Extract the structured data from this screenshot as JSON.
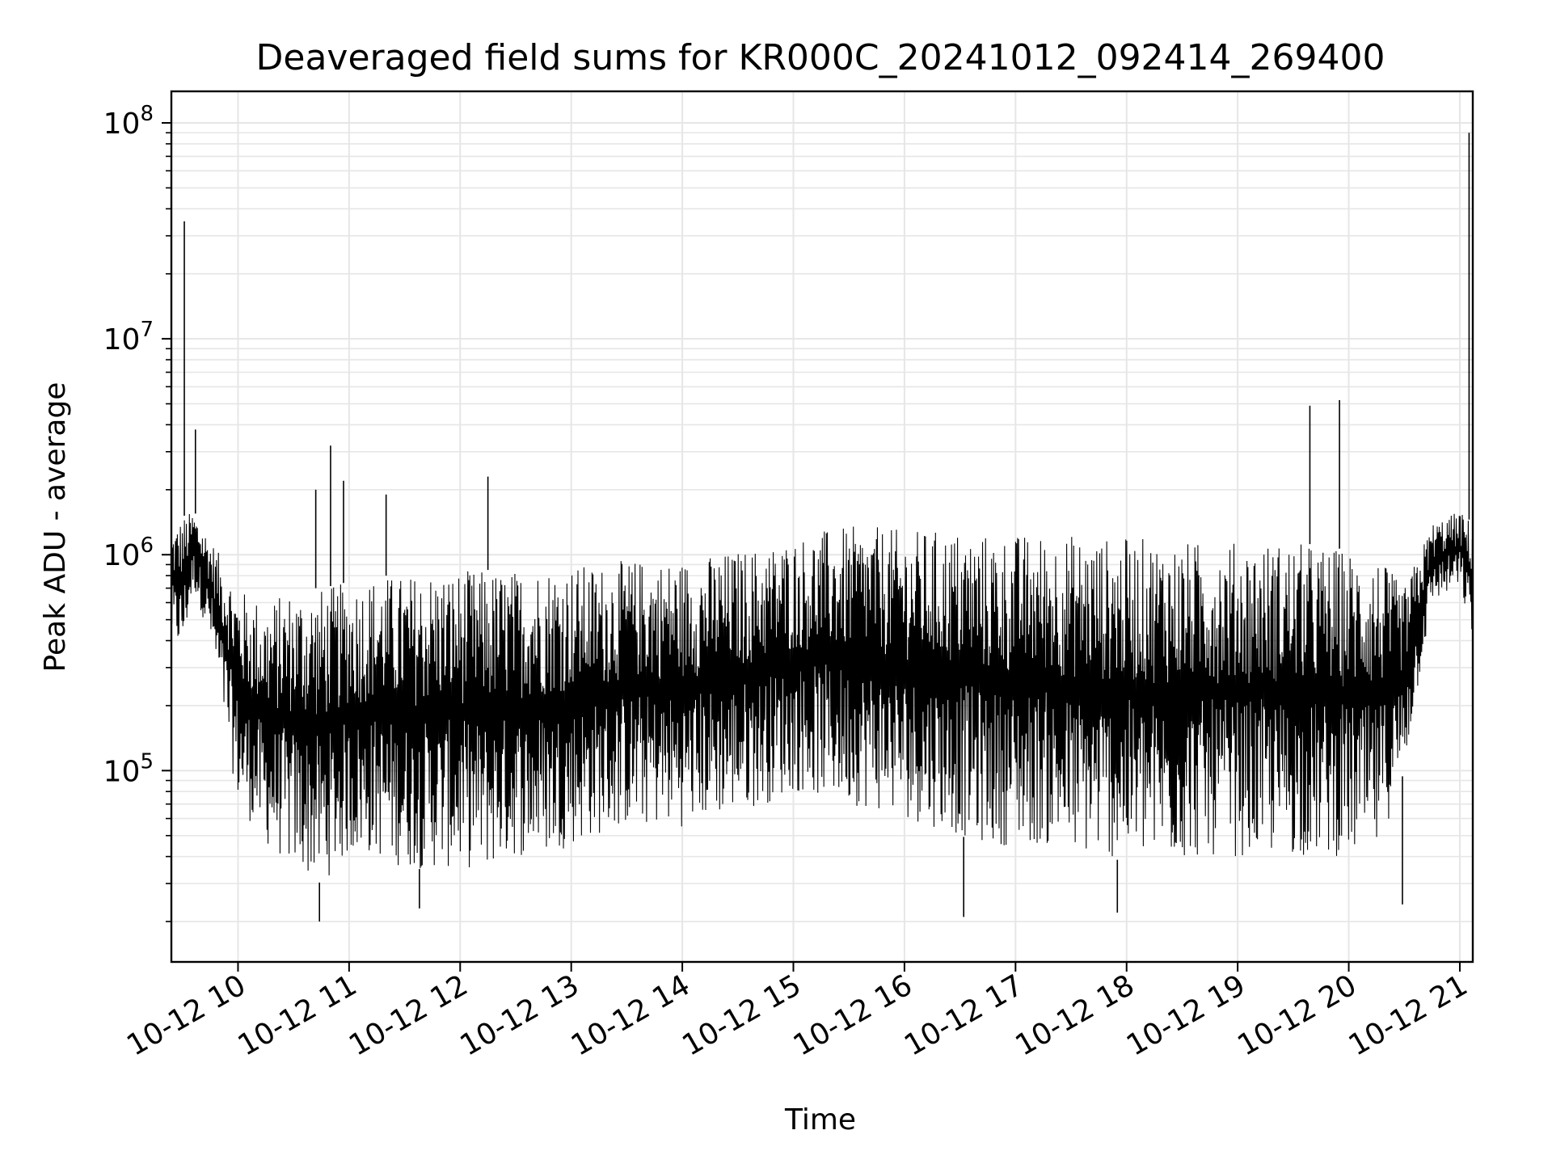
{
  "chart_data": {
    "type": "line",
    "title": "Deaveraged field sums for KR000C_20241012_092414_269400",
    "xlabel": "Time",
    "ylabel": "Peak ADU - average",
    "yscale": "log",
    "xlim": [
      "10-12 09:24",
      "10-12 21:07"
    ],
    "ylim": [
      13000,
      140000000
    ],
    "grid": true,
    "line_color": "#000000",
    "grid_color": "#e6e6e6",
    "x_ticks": [
      {
        "value": "10-12 10",
        "label": "10-12 10"
      },
      {
        "value": "10-12 11",
        "label": "10-12 11"
      },
      {
        "value": "10-12 12",
        "label": "10-12 12"
      },
      {
        "value": "10-12 13",
        "label": "10-12 13"
      },
      {
        "value": "10-12 14",
        "label": "10-12 14"
      },
      {
        "value": "10-12 15",
        "label": "10-12 15"
      },
      {
        "value": "10-12 16",
        "label": "10-12 16"
      },
      {
        "value": "10-12 17",
        "label": "10-12 17"
      },
      {
        "value": "10-12 18",
        "label": "10-12 18"
      },
      {
        "value": "10-12 19",
        "label": "10-12 19"
      },
      {
        "value": "10-12 20",
        "label": "10-12 20"
      },
      {
        "value": "10-12 21",
        "label": "10-12 21"
      }
    ],
    "y_ticks": [
      {
        "value": 100000,
        "base": "10",
        "exp": "5"
      },
      {
        "value": 1000000,
        "base": "10",
        "exp": "6"
      },
      {
        "value": 10000000,
        "base": "10",
        "exp": "7"
      },
      {
        "value": 100000000,
        "base": "10",
        "exp": "8"
      }
    ],
    "series": [
      {
        "envelope": {
          "x": [
            "10-12 09:24",
            "10-12 09:30",
            "10-12 09:36",
            "10-12 09:45",
            "10-12 10:00",
            "10-12 10:15",
            "10-12 10:30",
            "10-12 10:45",
            "10-12 11:00",
            "10-12 11:15",
            "10-12 11:30",
            "10-12 11:45",
            "10-12 12:00",
            "10-12 12:15",
            "10-12 12:30",
            "10-12 12:45",
            "10-12 13:00",
            "10-12 13:15",
            "10-12 13:30",
            "10-12 13:45",
            "10-12 14:00",
            "10-12 14:15",
            "10-12 14:30",
            "10-12 14:45",
            "10-12 15:00",
            "10-12 15:15",
            "10-12 15:30",
            "10-12 15:45",
            "10-12 16:00",
            "10-12 16:15",
            "10-12 16:30",
            "10-12 16:45",
            "10-12 17:00",
            "10-12 17:15",
            "10-12 17:30",
            "10-12 17:45",
            "10-12 18:00",
            "10-12 18:15",
            "10-12 18:30",
            "10-12 18:45",
            "10-12 19:00",
            "10-12 19:15",
            "10-12 19:30",
            "10-12 19:45",
            "10-12 20:00",
            "10-12 20:15",
            "10-12 20:30",
            "10-12 20:45",
            "10-12 21:00",
            "10-12 21:07"
          ],
          "low": [
            400000,
            350000,
            700000,
            400000,
            70000,
            45000,
            35000,
            30000,
            40000,
            40000,
            35000,
            35000,
            35000,
            35000,
            40000,
            40000,
            45000,
            50000,
            55000,
            55000,
            55000,
            60000,
            65000,
            70000,
            80000,
            75000,
            70000,
            65000,
            60000,
            55000,
            50000,
            45000,
            45000,
            45000,
            40000,
            40000,
            38000,
            38000,
            38000,
            40000,
            40000,
            40000,
            40000,
            40000,
            40000,
            40000,
            100000,
            600000,
            700000,
            400000
          ],
          "high": [
            1300000,
            1500000,
            1600000,
            1200000,
            700000,
            600000,
            700000,
            700000,
            750000,
            800000,
            800000,
            850000,
            850000,
            850000,
            850000,
            900000,
            900000,
            900000,
            950000,
            950000,
            950000,
            1000000,
            1050000,
            1100000,
            1200000,
            1300000,
            1350000,
            1350000,
            1300000,
            1300000,
            1300000,
            1250000,
            1250000,
            1250000,
            1250000,
            1200000,
            1200000,
            1200000,
            1150000,
            1150000,
            1150000,
            1150000,
            1150000,
            1100000,
            1050000,
            1000000,
            700000,
            1400000,
            1600000,
            1400000
          ]
        },
        "spikes": [
          {
            "x": "10-12 09:31",
            "y": 35000000
          },
          {
            "x": "10-12 09:37",
            "y": 3800000
          },
          {
            "x": "10-12 10:42",
            "y": 2000000
          },
          {
            "x": "10-12 10:50",
            "y": 3200000
          },
          {
            "x": "10-12 10:57",
            "y": 2200000
          },
          {
            "x": "10-12 11:20",
            "y": 1900000
          },
          {
            "x": "10-12 12:15",
            "y": 2300000
          },
          {
            "x": "10-12 19:39",
            "y": 4900000
          },
          {
            "x": "10-12 19:55",
            "y": 5200000
          },
          {
            "x": "10-12 21:05",
            "y": 90000000
          }
        ],
        "dips": [
          {
            "x": "10-12 10:44",
            "y": 20000
          },
          {
            "x": "10-12 11:38",
            "y": 23000
          },
          {
            "x": "10-12 16:32",
            "y": 21000
          },
          {
            "x": "10-12 17:55",
            "y": 22000
          },
          {
            "x": "10-12 20:29",
            "y": 24000
          }
        ]
      }
    ]
  }
}
